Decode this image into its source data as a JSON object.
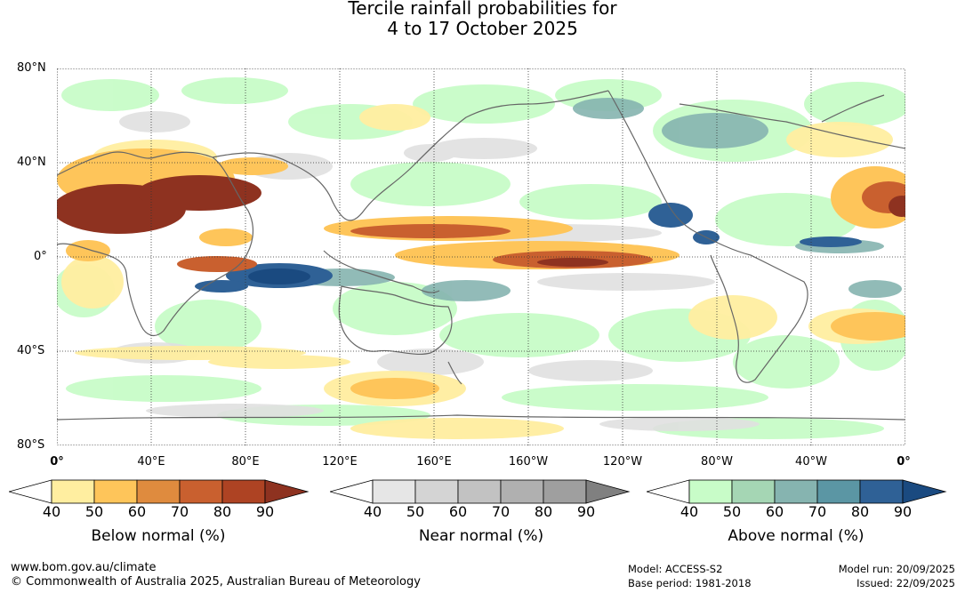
{
  "title": {
    "line1": "Tercile rainfall probabilities for",
    "line2": "4 to 17 October 2025"
  },
  "map": {
    "lat_labels": [
      "80°N",
      "40°N",
      "0°",
      "40°S",
      "80°S"
    ],
    "lon_labels": [
      "0°",
      "40°E",
      "80°E",
      "120°E",
      "160°E",
      "160°W",
      "120°W",
      "80°W",
      "40°W",
      "0°"
    ]
  },
  "legends": [
    {
      "title": "Below normal (%)",
      "ticks": [
        "40",
        "50",
        "60",
        "70",
        "80",
        "90"
      ],
      "colors": [
        "#ffeea0",
        "#fec55a",
        "#df8b3e",
        "#c9602f",
        "#ae4323",
        "#8e3220"
      ]
    },
    {
      "title": "Near normal (%)",
      "ticks": [
        "40",
        "50",
        "60",
        "70",
        "80",
        "90"
      ],
      "colors": [
        "#e6e6e6",
        "#d4d4d4",
        "#c2c2c2",
        "#b0b0b0",
        "#9f9f9f",
        "#808080"
      ]
    },
    {
      "title": "Above normal (%)",
      "ticks": [
        "40",
        "50",
        "60",
        "70",
        "80",
        "90"
      ],
      "colors": [
        "#c8fcc8",
        "#a5d6b4",
        "#86b4b0",
        "#5b96a4",
        "#2f6196",
        "#1a4a80"
      ]
    }
  ],
  "footer": {
    "url": "www.bom.gov.au/climate",
    "copyright": "© Commonwealth of Australia 2025, Australian Bureau of Meteorology",
    "model": "Model: ACCESS-S2",
    "base_period": "Base period: 1981-2018",
    "model_run": "Model run: 20/09/2025",
    "issued": "Issued: 22/09/2025"
  }
}
